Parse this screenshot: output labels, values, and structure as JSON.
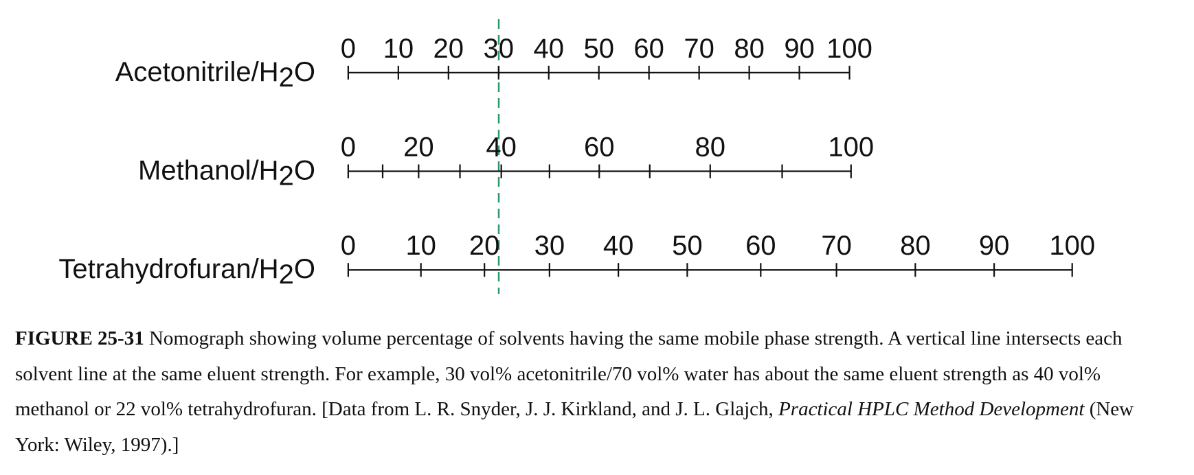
{
  "scales": [
    {
      "label": [
        "Acetonitrile/H",
        "2",
        "O"
      ],
      "ticks": [
        0,
        10,
        20,
        30,
        40,
        50,
        60,
        70,
        80,
        90,
        100
      ],
      "labels": [
        0,
        10,
        20,
        30,
        40,
        50,
        60,
        70,
        80,
        90,
        100
      ]
    },
    {
      "label": [
        "Methanol/H",
        "2",
        "O"
      ],
      "ticks": [
        0,
        10,
        20,
        30,
        40,
        50,
        60,
        70,
        80,
        90,
        100
      ],
      "labels": [
        0,
        20,
        40,
        60,
        80,
        100
      ]
    },
    {
      "label": [
        "Tetrahydrofuran/H",
        "2",
        "O"
      ],
      "ticks": [
        0,
        10,
        20,
        30,
        40,
        50,
        60,
        70,
        80,
        90,
        100
      ],
      "labels": [
        0,
        10,
        20,
        30,
        40,
        50,
        60,
        70,
        80,
        90,
        100
      ]
    }
  ],
  "caption": {
    "figure": "FIGURE 25-31",
    "text": " Nomograph showing volume percentage of solvents having the same mobile phase strength. A vertical line intersects each solvent line at the same eluent strength. For example, 30 vol% acetonitrile/70 vol% water has about the same eluent strength as 40 vol% methanol or 22 vol% tetrahydrofuran. [Data from L. R. Snyder, J. J. Kirkland, and J. L. Glajch, ",
    "book": "Practical HPLC Method Development",
    "end": " (New York: Wiley, 1997).]"
  }
}
